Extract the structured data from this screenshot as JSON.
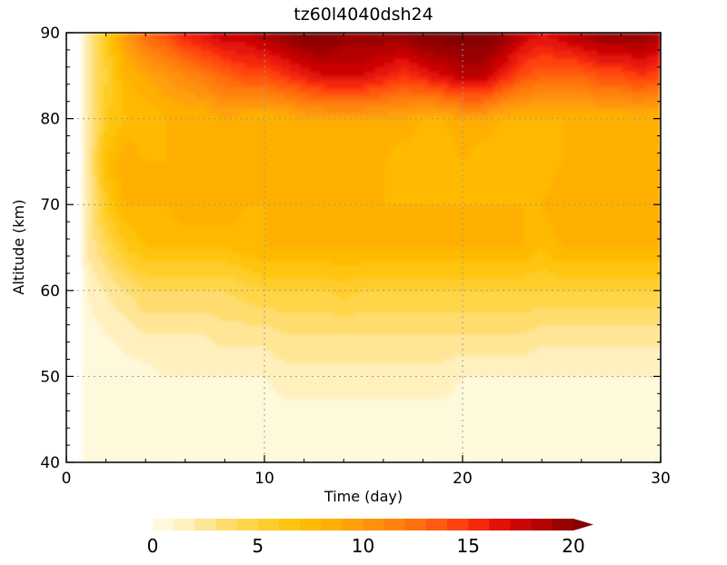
{
  "chart_data": {
    "type": "heatmap",
    "title": "tz60l4040dsh24",
    "xlabel": "Time (day)",
    "ylabel": "Altitude (km)",
    "xlim": [
      0,
      30
    ],
    "ylim": [
      40,
      90
    ],
    "xticks": [
      0,
      10,
      20,
      30
    ],
    "xtick_labels": [
      "0",
      "10",
      "20",
      "30"
    ],
    "yticks": [
      40,
      50,
      60,
      70,
      80,
      90
    ],
    "ytick_labels": [
      "40",
      "50",
      "60",
      "70",
      "80",
      "90"
    ],
    "grid": true,
    "grid_x": [
      10,
      20
    ],
    "grid_y": [
      50,
      60,
      70,
      80
    ],
    "data_start_day": 0.8,
    "profiles": [
      {
        "day": 0.8,
        "values": [
          0,
          0,
          0,
          0,
          0,
          0.5,
          0.5,
          1,
          1,
          1.5,
          1.5
        ]
      },
      {
        "day": 1,
        "values": [
          0,
          0,
          0,
          0.5,
          1,
          2,
          2,
          2,
          2,
          2,
          2
        ]
      },
      {
        "day": 2,
        "values": [
          0,
          0,
          0,
          1,
          2,
          4,
          6,
          7,
          6,
          5,
          6
        ]
      },
      {
        "day": 3,
        "values": [
          0,
          0,
          0.5,
          1.5,
          3,
          6,
          8,
          9,
          7,
          8,
          10
        ]
      },
      {
        "day": 4,
        "values": [
          0,
          0,
          0.5,
          2,
          4,
          7,
          8,
          8,
          7,
          9,
          13
        ]
      },
      {
        "day": 5,
        "values": [
          0,
          0,
          1,
          2,
          4,
          7,
          8,
          8,
          8,
          10,
          14
        ]
      },
      {
        "day": 6,
        "values": [
          0,
          0,
          1,
          2,
          4,
          7,
          9,
          8,
          8,
          11,
          16
        ]
      },
      {
        "day": 7,
        "values": [
          0,
          0.5,
          1,
          2,
          4,
          7,
          9,
          8,
          8,
          12,
          17
        ]
      },
      {
        "day": 8,
        "values": [
          0,
          0.5,
          1,
          2.5,
          4,
          7,
          9,
          8,
          9,
          13,
          18
        ]
      },
      {
        "day": 9,
        "values": [
          0,
          0.5,
          1,
          2.5,
          4.5,
          7.5,
          8,
          8,
          8,
          14,
          18
        ]
      },
      {
        "day": 10,
        "values": [
          0,
          0.5,
          1,
          2.5,
          5,
          8,
          8,
          8,
          8,
          14,
          19
        ]
      },
      {
        "day": 11,
        "values": [
          0,
          0.5,
          1.5,
          3,
          5,
          8,
          9,
          8,
          8,
          15,
          20
        ]
      },
      {
        "day": 12,
        "values": [
          0,
          0.5,
          1.5,
          3,
          5,
          8,
          9,
          8,
          9,
          16,
          21
        ]
      },
      {
        "day": 13,
        "values": [
          0,
          0.5,
          1.5,
          3,
          5,
          8,
          9,
          8,
          9,
          17,
          21
        ]
      },
      {
        "day": 14,
        "values": [
          0,
          0.5,
          1.5,
          3,
          5.5,
          8,
          9,
          8,
          9,
          17,
          20
        ]
      },
      {
        "day": 15,
        "values": [
          0,
          0.5,
          1.5,
          3,
          5,
          8,
          9,
          8,
          9,
          17,
          20
        ]
      },
      {
        "day": 16,
        "values": [
          0,
          0.5,
          1.5,
          3,
          5,
          8,
          8,
          8,
          9,
          16,
          20
        ]
      },
      {
        "day": 17,
        "values": [
          0,
          0.5,
          1.5,
          3,
          5,
          8,
          8,
          7,
          9,
          15,
          20
        ]
      },
      {
        "day": 18,
        "values": [
          0,
          0.5,
          1.5,
          3,
          5,
          8,
          8,
          7,
          8,
          16,
          21
        ]
      },
      {
        "day": 19,
        "values": [
          0,
          0.5,
          1.5,
          3,
          5,
          8,
          8,
          7,
          8,
          17,
          21
        ]
      },
      {
        "day": 20,
        "values": [
          0,
          0.5,
          1,
          3,
          5,
          8,
          8,
          8,
          9,
          18,
          21
        ]
      },
      {
        "day": 21,
        "values": [
          0,
          0.5,
          1,
          3,
          5,
          8,
          8,
          7,
          9,
          18,
          21
        ]
      },
      {
        "day": 22,
        "values": [
          0,
          0.5,
          1,
          3,
          5,
          8,
          8,
          7,
          8,
          16,
          20
        ]
      },
      {
        "day": 23,
        "values": [
          0,
          0.5,
          1,
          3,
          5,
          8,
          8,
          7,
          8,
          14,
          18
        ]
      },
      {
        "day": 24,
        "values": [
          0,
          0.5,
          1,
          2.5,
          5,
          7,
          8,
          7,
          8,
          13,
          17
        ]
      },
      {
        "day": 25,
        "values": [
          0,
          0.5,
          1,
          2.5,
          5,
          8,
          9,
          8,
          8,
          13,
          18
        ]
      },
      {
        "day": 26,
        "values": [
          0,
          0.5,
          1,
          2.5,
          5,
          8,
          9,
          8,
          8,
          13,
          19
        ]
      },
      {
        "day": 27,
        "values": [
          0,
          0.5,
          1,
          2.5,
          5,
          8,
          8,
          8,
          8,
          14,
          20
        ]
      },
      {
        "day": 28,
        "values": [
          0,
          0.5,
          1,
          2.5,
          5,
          8,
          9,
          8,
          8,
          14,
          20
        ]
      },
      {
        "day": 29,
        "values": [
          0,
          0.5,
          1,
          2.5,
          5,
          8,
          9,
          8,
          8,
          15,
          20
        ]
      },
      {
        "day": 30,
        "values": [
          0,
          0.5,
          1,
          2.5,
          5,
          8,
          9,
          8,
          8,
          14,
          19
        ]
      }
    ],
    "profile_altitudes": [
      40,
      45,
      50,
      55,
      60,
      65,
      70,
      75,
      80,
      85,
      90
    ],
    "colorbar": {
      "levels": [
        0,
        1,
        2,
        3,
        4,
        5,
        6,
        7,
        8,
        9,
        10,
        11,
        12,
        13,
        14,
        15,
        16,
        17,
        18,
        19,
        20
      ],
      "tick_values": [
        0,
        5,
        10,
        15,
        20
      ],
      "tick_labels": [
        "0",
        "5",
        "10",
        "15",
        "20"
      ],
      "extend": "max",
      "colors": [
        "#fff9dc",
        "#fff0be",
        "#ffe596",
        "#ffdc6e",
        "#ffd54a",
        "#ffcd2a",
        "#ffc40f",
        "#ffba05",
        "#ffaf05",
        "#ffa108",
        "#ff920a",
        "#ff820c",
        "#ff700e",
        "#ff5a10",
        "#ff4210",
        "#f5270d",
        "#e31208",
        "#cc0505",
        "#b30303",
        "#990202",
        "#850101"
      ]
    }
  }
}
